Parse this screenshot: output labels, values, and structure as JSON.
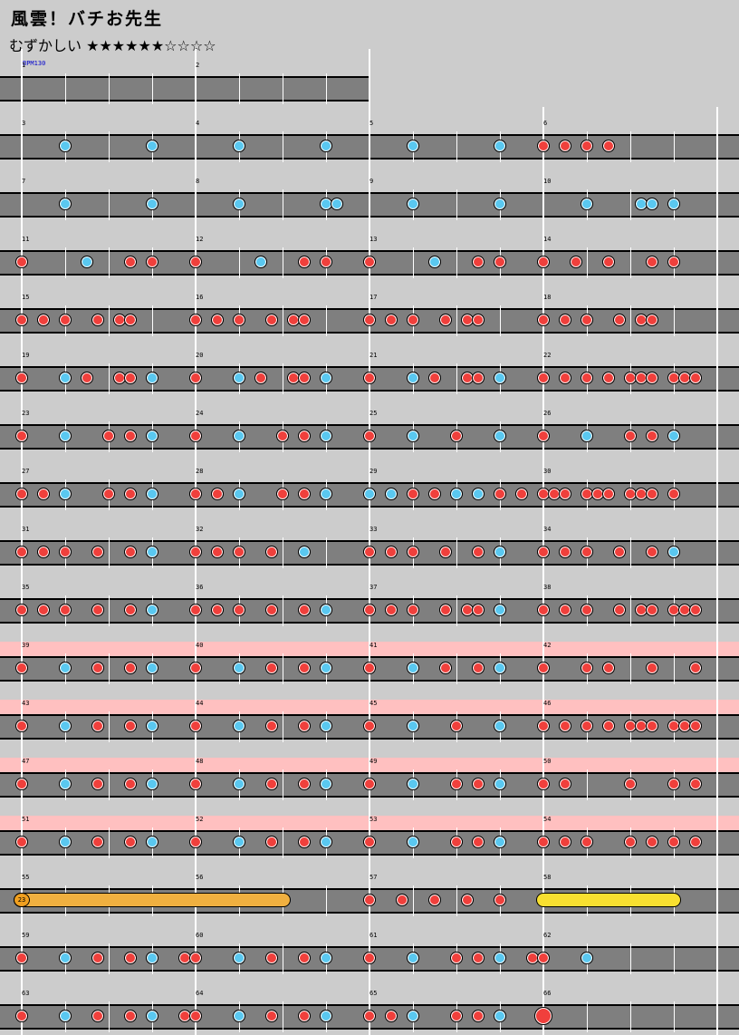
{
  "title": "風雲！バチお先生",
  "difficulty": {
    "label": "むずかしい",
    "stars": "★★★★★★☆☆☆☆"
  },
  "bpm": "BPM130",
  "colors": {
    "don": "#f0403c",
    "ka": "#5ac8f0",
    "lane": "#7f7f7f",
    "background": "#cccccc",
    "gogo": "#ffc0c0"
  },
  "rows": [
    {
      "measures": [
        1,
        2
      ],
      "lane_end_beats": 8,
      "gogo": false,
      "notes": []
    },
    {
      "measures": [
        3,
        4,
        5,
        6
      ],
      "gogo": false,
      "notes": [
        [
          "k",
          1
        ],
        [
          "k",
          3
        ],
        [
          "k",
          5
        ],
        [
          "k",
          7
        ],
        [
          "k",
          9
        ],
        [
          "k",
          11
        ],
        [
          "d",
          12
        ],
        [
          "d",
          12.5
        ],
        [
          "d",
          13
        ],
        [
          "d",
          13.5
        ]
      ]
    },
    {
      "measures": [
        7,
        8,
        9,
        10
      ],
      "gogo": false,
      "notes": [
        [
          "k",
          1
        ],
        [
          "k",
          3
        ],
        [
          "k",
          5
        ],
        [
          "k",
          7
        ],
        [
          "k",
          7.25
        ],
        [
          "k",
          9
        ],
        [
          "k",
          11
        ],
        [
          "k",
          13
        ],
        [
          "k",
          14.25
        ],
        [
          "k",
          14.5
        ],
        [
          "k",
          15
        ]
      ]
    },
    {
      "measures": [
        11,
        12,
        13,
        14
      ],
      "gogo": false,
      "notes": [
        [
          "d",
          0
        ],
        [
          "k",
          1.5
        ],
        [
          "d",
          2.5
        ],
        [
          "d",
          3
        ],
        [
          "d",
          4
        ],
        [
          "k",
          5.5
        ],
        [
          "d",
          6.5
        ],
        [
          "d",
          7
        ],
        [
          "d",
          8
        ],
        [
          "k",
          9.5
        ],
        [
          "d",
          10.5
        ],
        [
          "d",
          11
        ],
        [
          "d",
          12
        ],
        [
          "d",
          12.75
        ],
        [
          "d",
          13.5
        ],
        [
          "d",
          14.5
        ],
        [
          "d",
          15
        ]
      ]
    },
    {
      "measures": [
        15,
        16,
        17,
        18
      ],
      "gogo": false,
      "notes": [
        [
          "d",
          0
        ],
        [
          "d",
          0.5
        ],
        [
          "d",
          1
        ],
        [
          "d",
          1.75
        ],
        [
          "d",
          2.25
        ],
        [
          "d",
          2.5
        ],
        [
          "d",
          4
        ],
        [
          "d",
          4.5
        ],
        [
          "d",
          5
        ],
        [
          "d",
          5.75
        ],
        [
          "d",
          6.25
        ],
        [
          "d",
          6.5
        ],
        [
          "d",
          8
        ],
        [
          "d",
          8.5
        ],
        [
          "d",
          9
        ],
        [
          "d",
          9.75
        ],
        [
          "d",
          10.25
        ],
        [
          "d",
          10.5
        ],
        [
          "d",
          12
        ],
        [
          "d",
          12.5
        ],
        [
          "d",
          13
        ],
        [
          "d",
          13.75
        ],
        [
          "d",
          14.25
        ],
        [
          "d",
          14.5
        ]
      ]
    },
    {
      "measures": [
        19,
        20,
        21,
        22
      ],
      "gogo": false,
      "notes": [
        [
          "d",
          0
        ],
        [
          "k",
          1
        ],
        [
          "d",
          1.5
        ],
        [
          "d",
          2.25
        ],
        [
          "d",
          2.5
        ],
        [
          "k",
          3
        ],
        [
          "d",
          4
        ],
        [
          "k",
          5
        ],
        [
          "d",
          5.5
        ],
        [
          "d",
          6.25
        ],
        [
          "d",
          6.5
        ],
        [
          "k",
          7
        ],
        [
          "d",
          8
        ],
        [
          "k",
          9
        ],
        [
          "d",
          9.5
        ],
        [
          "d",
          10.25
        ],
        [
          "d",
          10.5
        ],
        [
          "k",
          11
        ],
        [
          "d",
          12
        ],
        [
          "d",
          12.5
        ],
        [
          "d",
          13
        ],
        [
          "d",
          13.5
        ],
        [
          "d",
          14
        ],
        [
          "d",
          14.25
        ],
        [
          "d",
          14.5
        ],
        [
          "d",
          15
        ],
        [
          "d",
          15.25
        ],
        [
          "d",
          15.5
        ]
      ]
    },
    {
      "measures": [
        23,
        24,
        25,
        26
      ],
      "gogo": false,
      "notes": [
        [
          "d",
          0
        ],
        [
          "k",
          1
        ],
        [
          "d",
          2
        ],
        [
          "d",
          2.5
        ],
        [
          "k",
          3
        ],
        [
          "d",
          4
        ],
        [
          "k",
          5
        ],
        [
          "d",
          6
        ],
        [
          "d",
          6.5
        ],
        [
          "k",
          7
        ],
        [
          "d",
          8
        ],
        [
          "k",
          9
        ],
        [
          "d",
          10
        ],
        [
          "k",
          11
        ],
        [
          "d",
          12
        ],
        [
          "k",
          13
        ],
        [
          "d",
          14
        ],
        [
          "d",
          14.5
        ],
        [
          "k",
          15
        ]
      ]
    },
    {
      "measures": [
        27,
        28,
        29,
        30
      ],
      "gogo": false,
      "notes": [
        [
          "d",
          0
        ],
        [
          "d",
          0.5
        ],
        [
          "k",
          1
        ],
        [
          "d",
          2
        ],
        [
          "d",
          2.5
        ],
        [
          "k",
          3
        ],
        [
          "d",
          4
        ],
        [
          "d",
          4.5
        ],
        [
          "k",
          5
        ],
        [
          "d",
          6
        ],
        [
          "d",
          6.5
        ],
        [
          "k",
          7
        ],
        [
          "k",
          8
        ],
        [
          "k",
          8.5
        ],
        [
          "d",
          9
        ],
        [
          "d",
          9.5
        ],
        [
          "k",
          10
        ],
        [
          "k",
          10.5
        ],
        [
          "d",
          11
        ],
        [
          "d",
          11.5
        ],
        [
          "d",
          12
        ],
        [
          "d",
          12.25
        ],
        [
          "d",
          12.5
        ],
        [
          "d",
          13
        ],
        [
          "d",
          13.25
        ],
        [
          "d",
          13.5
        ],
        [
          "d",
          14
        ],
        [
          "d",
          14.25
        ],
        [
          "d",
          14.5
        ],
        [
          "d",
          15
        ]
      ]
    },
    {
      "measures": [
        31,
        32,
        33,
        34
      ],
      "gogo": false,
      "notes": [
        [
          "d",
          0
        ],
        [
          "d",
          0.5
        ],
        [
          "d",
          1
        ],
        [
          "d",
          1.75
        ],
        [
          "d",
          2.5
        ],
        [
          "k",
          3
        ],
        [
          "d",
          4
        ],
        [
          "d",
          4.5
        ],
        [
          "d",
          5
        ],
        [
          "d",
          5.75
        ],
        [
          "k",
          6.5
        ],
        [
          "d",
          8
        ],
        [
          "d",
          8.5
        ],
        [
          "d",
          9
        ],
        [
          "d",
          9.75
        ],
        [
          "d",
          10.5
        ],
        [
          "k",
          11
        ],
        [
          "d",
          12
        ],
        [
          "d",
          12.5
        ],
        [
          "d",
          13
        ],
        [
          "d",
          13.75
        ],
        [
          "d",
          14.5
        ],
        [
          "k",
          15
        ]
      ]
    },
    {
      "measures": [
        35,
        36,
        37,
        38
      ],
      "gogo": false,
      "notes": [
        [
          "d",
          0
        ],
        [
          "d",
          0.5
        ],
        [
          "d",
          1
        ],
        [
          "d",
          1.75
        ],
        [
          "d",
          2.5
        ],
        [
          "k",
          3
        ],
        [
          "d",
          4
        ],
        [
          "d",
          4.5
        ],
        [
          "d",
          5
        ],
        [
          "d",
          5.75
        ],
        [
          "d",
          6.5
        ],
        [
          "k",
          7
        ],
        [
          "d",
          8
        ],
        [
          "d",
          8.5
        ],
        [
          "d",
          9
        ],
        [
          "d",
          9.75
        ],
        [
          "d",
          10.25
        ],
        [
          "d",
          10.5
        ],
        [
          "k",
          11
        ],
        [
          "d",
          12
        ],
        [
          "d",
          12.5
        ],
        [
          "d",
          13
        ],
        [
          "d",
          13.75
        ],
        [
          "d",
          14.25
        ],
        [
          "d",
          14.5
        ],
        [
          "d",
          15
        ],
        [
          "d",
          15.25
        ],
        [
          "d",
          15.5
        ]
      ]
    },
    {
      "measures": [
        39,
        40,
        41,
        42
      ],
      "gogo": true,
      "notes": [
        [
          "d",
          0
        ],
        [
          "k",
          1
        ],
        [
          "d",
          1.75
        ],
        [
          "d",
          2.5
        ],
        [
          "k",
          3
        ],
        [
          "d",
          4
        ],
        [
          "k",
          5
        ],
        [
          "d",
          5.75
        ],
        [
          "d",
          6.5
        ],
        [
          "k",
          7
        ],
        [
          "d",
          8
        ],
        [
          "k",
          9
        ],
        [
          "d",
          9.75
        ],
        [
          "d",
          10.5
        ],
        [
          "k",
          11
        ],
        [
          "d",
          12
        ],
        [
          "d",
          13
        ],
        [
          "d",
          13.5
        ],
        [
          "d",
          14.5
        ],
        [
          "d",
          15.5
        ]
      ]
    },
    {
      "measures": [
        43,
        44,
        45,
        46
      ],
      "gogo": true,
      "notes": [
        [
          "d",
          0
        ],
        [
          "k",
          1
        ],
        [
          "d",
          1.75
        ],
        [
          "d",
          2.5
        ],
        [
          "k",
          3
        ],
        [
          "d",
          4
        ],
        [
          "k",
          5
        ],
        [
          "d",
          5.75
        ],
        [
          "d",
          6.5
        ],
        [
          "k",
          7
        ],
        [
          "d",
          8
        ],
        [
          "k",
          9
        ],
        [
          "d",
          10
        ],
        [
          "k",
          11
        ],
        [
          "d",
          12
        ],
        [
          "d",
          12.5
        ],
        [
          "d",
          13
        ],
        [
          "d",
          13.5
        ],
        [
          "d",
          14
        ],
        [
          "d",
          14.25
        ],
        [
          "d",
          14.5
        ],
        [
          "d",
          15
        ],
        [
          "d",
          15.25
        ],
        [
          "d",
          15.5
        ]
      ]
    },
    {
      "measures": [
        47,
        48,
        49,
        50
      ],
      "gogo": true,
      "notes": [
        [
          "d",
          0
        ],
        [
          "k",
          1
        ],
        [
          "d",
          1.75
        ],
        [
          "d",
          2.5
        ],
        [
          "k",
          3
        ],
        [
          "d",
          4
        ],
        [
          "k",
          5
        ],
        [
          "d",
          5.75
        ],
        [
          "d",
          6.5
        ],
        [
          "k",
          7
        ],
        [
          "d",
          8
        ],
        [
          "k",
          9
        ],
        [
          "d",
          10
        ],
        [
          "d",
          10.5
        ],
        [
          "k",
          11
        ],
        [
          "d",
          12
        ],
        [
          "d",
          12.5
        ],
        [
          "d",
          14
        ],
        [
          "d",
          15
        ],
        [
          "d",
          15.5
        ]
      ]
    },
    {
      "measures": [
        51,
        52,
        53,
        54
      ],
      "gogo": true,
      "notes": [
        [
          "d",
          0
        ],
        [
          "k",
          1
        ],
        [
          "d",
          1.75
        ],
        [
          "d",
          2.5
        ],
        [
          "k",
          3
        ],
        [
          "d",
          4
        ],
        [
          "k",
          5
        ],
        [
          "d",
          5.75
        ],
        [
          "d",
          6.5
        ],
        [
          "k",
          7
        ],
        [
          "d",
          8
        ],
        [
          "k",
          9
        ],
        [
          "d",
          10
        ],
        [
          "d",
          10.5
        ],
        [
          "k",
          11
        ],
        [
          "d",
          12
        ],
        [
          "d",
          12.5
        ],
        [
          "d",
          13
        ],
        [
          "d",
          14
        ],
        [
          "d",
          14.5
        ],
        [
          "d",
          15
        ],
        [
          "d",
          15.5
        ]
      ]
    },
    {
      "measures": [
        55,
        56,
        57,
        58
      ],
      "gogo": false,
      "balloon": {
        "start": 0,
        "end": 6,
        "count": "23"
      },
      "roll": {
        "start": 12,
        "end": 15
      },
      "notes": [
        [
          "d",
          8
        ],
        [
          "d",
          8.75
        ],
        [
          "d",
          9.5
        ],
        [
          "d",
          10.25
        ],
        [
          "d",
          11
        ]
      ]
    },
    {
      "measures": [
        59,
        60,
        61,
        62
      ],
      "gogo": false,
      "notes": [
        [
          "d",
          0
        ],
        [
          "k",
          1
        ],
        [
          "d",
          1.75
        ],
        [
          "d",
          2.5
        ],
        [
          "k",
          3
        ],
        [
          "d",
          3.75
        ],
        [
          "d",
          4
        ],
        [
          "k",
          5
        ],
        [
          "d",
          5.75
        ],
        [
          "d",
          6.5
        ],
        [
          "k",
          7
        ],
        [
          "d",
          8
        ],
        [
          "k",
          9
        ],
        [
          "d",
          10
        ],
        [
          "d",
          10.5
        ],
        [
          "k",
          11
        ],
        [
          "d",
          11.75
        ],
        [
          "d",
          12
        ],
        [
          "k",
          13
        ]
      ]
    },
    {
      "measures": [
        63,
        64,
        65,
        66
      ],
      "gogo": false,
      "notes": [
        [
          "d",
          0
        ],
        [
          "k",
          1
        ],
        [
          "d",
          1.75
        ],
        [
          "d",
          2.5
        ],
        [
          "k",
          3
        ],
        [
          "d",
          3.75
        ],
        [
          "d",
          4
        ],
        [
          "k",
          5
        ],
        [
          "d",
          5.75
        ],
        [
          "d",
          6.5
        ],
        [
          "k",
          7
        ],
        [
          "d",
          8
        ],
        [
          "d",
          8.5
        ],
        [
          "k",
          9
        ],
        [
          "d",
          10
        ],
        [
          "d",
          10.5
        ],
        [
          "k",
          11
        ],
        [
          "D",
          12
        ]
      ]
    }
  ]
}
